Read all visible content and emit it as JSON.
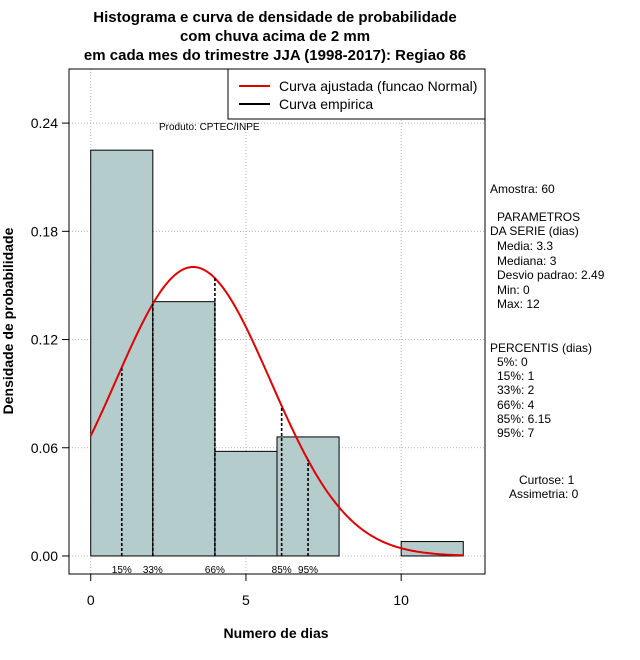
{
  "chart_data": {
    "type": "bar",
    "title": [
      "Histograma e curva de densidade de probabilidade",
      "com chuva acima de 2 mm",
      "em cada mes do trimestre JJA (1998-2017): Regiao 86"
    ],
    "xlabel": "Numero de dias",
    "ylabel": "Densidade de probabilidade",
    "xlim": [
      -0.7,
      12.7
    ],
    "ylim": [
      -0.01,
      0.27
    ],
    "x_ticks": [
      0,
      5,
      10
    ],
    "x_tick_labels": [
      "0",
      "5",
      "10"
    ],
    "y_ticks": [
      0.0,
      0.06,
      0.12,
      0.18,
      0.24
    ],
    "y_tick_labels": [
      "0.00",
      "0.06",
      "0.12",
      "0.18",
      "0.24"
    ],
    "grid": true,
    "bars": [
      {
        "x0": 0,
        "x1": 2,
        "density": 0.225
      },
      {
        "x0": 2,
        "x1": 4,
        "density": 0.141
      },
      {
        "x0": 4,
        "x1": 6,
        "density": 0.058
      },
      {
        "x0": 6,
        "x1": 8,
        "density": 0.066
      },
      {
        "x0": 10,
        "x1": 12,
        "density": 0.008
      }
    ],
    "bar_color": "#b5cccc",
    "normal_curve": {
      "mean": 3.3,
      "sd": 2.49,
      "from": 0,
      "to": 12,
      "color": "#e00000",
      "label": "Curva ajustada (funcao Normal)"
    },
    "empirical_curve": {
      "color": "#000000",
      "label": "Curva empirica"
    },
    "legend_placement": "top-right",
    "percentile_lines": [
      {
        "x": 1,
        "label": "15%"
      },
      {
        "x": 2,
        "label": "33%"
      },
      {
        "x": 4,
        "label": "66%"
      },
      {
        "x": 6.15,
        "label": "85%"
      },
      {
        "x": 7,
        "label": "95%"
      }
    ],
    "product_note": "Produto: CPTEC/INPE"
  },
  "sidebar": {
    "amostra": "Amostra: 60",
    "param_title_1": "PARAMETROS",
    "param_title_2": "DA SERIE (dias)",
    "media": "Media: 3.3",
    "mediana": "Mediana: 3",
    "desvio": "Desvio padrao: 2.49",
    "min": "Min: 0",
    "max": "Max: 12",
    "percentis_title": "PERCENTIS (dias)",
    "p5": "5%: 0",
    "p15": "15%: 1",
    "p33": "33%: 2",
    "p66": "66%: 4",
    "p85": "85%: 6.15",
    "p95": "95%: 7",
    "curtose": "Curtose: 1",
    "assimetria": "Assimetria: 0"
  }
}
